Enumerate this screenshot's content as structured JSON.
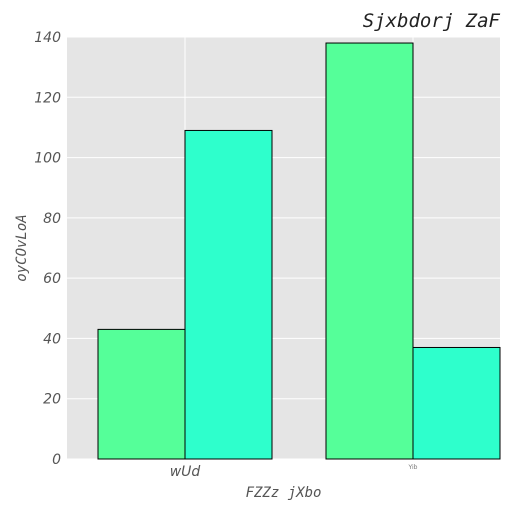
{
  "chart_data": {
    "type": "bar",
    "title": "Sjxbdorj ZaF",
    "xlabel": "FZZz jXbo",
    "ylabel": "oyCOvLoA",
    "categories": [
      "wUd",
      "Yib"
    ],
    "series": [
      {
        "values": [
          43,
          138
        ],
        "color": "#55ff99"
      },
      {
        "values": [
          109,
          37
        ],
        "color": "#2effcc"
      }
    ],
    "ylim": [
      0,
      140
    ],
    "yticks": [
      0,
      20,
      40,
      60,
      80,
      100,
      120,
      140
    ],
    "grid": true,
    "legend": "none",
    "colors": {
      "plot_background": "#e5e5e5",
      "grid": "#ffffff",
      "bar_edge": "#000000"
    }
  }
}
